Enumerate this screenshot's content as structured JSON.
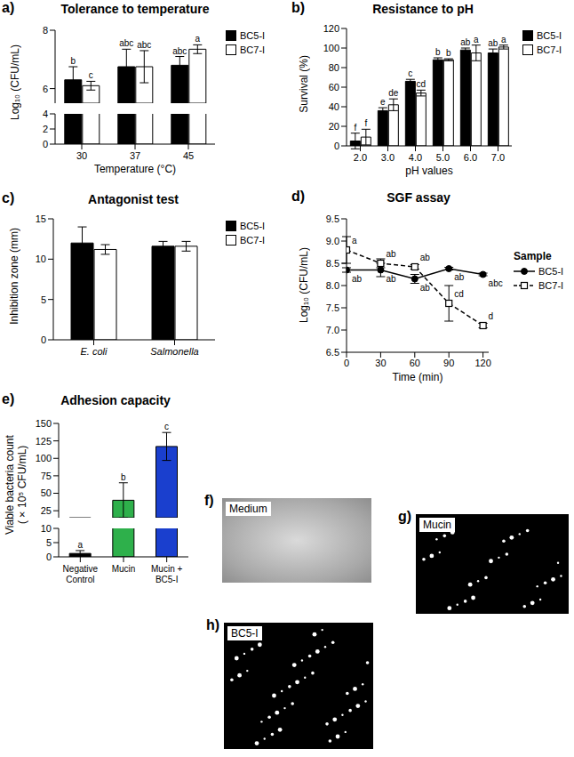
{
  "chart_data": [
    {
      "panel": "a)",
      "type": "bar",
      "title": "Tolerance to temperature",
      "x_label": "Temperature (°C)",
      "y_label": "Log₁₀ (CFU/mL)",
      "categories": [
        "30",
        "37",
        "45"
      ],
      "series": [
        {
          "name": "BC5-I",
          "color": "#000000",
          "values": [
            6.3,
            6.75,
            6.8
          ],
          "errors": [
            0.45,
            0.6,
            0.3
          ],
          "significance": [
            "b",
            "abc",
            "abc"
          ]
        },
        {
          "name": "BC7-I",
          "color": "#ffffff",
          "values": [
            6.1,
            6.75,
            7.35
          ],
          "errors": [
            0.15,
            0.55,
            0.15
          ],
          "significance": [
            "c",
            "abc",
            "a"
          ]
        }
      ],
      "ylim": [
        0,
        8
      ],
      "yticks": [
        0,
        2,
        4,
        6,
        8
      ],
      "axis_break": [
        4,
        5.5
      ],
      "legend": "upper right"
    },
    {
      "panel": "b)",
      "type": "bar",
      "title": "Resistance to pH",
      "x_label": "pH values",
      "y_label": "Survival (%)",
      "categories": [
        "2.0",
        "3.0",
        "4.0",
        "5.0",
        "6.0",
        "7.0"
      ],
      "series": [
        {
          "name": "BC5-I",
          "color": "#000000",
          "values": [
            5,
            36,
            66,
            88,
            98,
            95
          ],
          "errors": [
            8,
            3,
            2,
            2,
            2,
            4
          ],
          "significance": [
            "f",
            "e",
            "c",
            "b",
            "ab",
            "ab"
          ]
        },
        {
          "name": "BC7-I",
          "color": "#ffffff",
          "values": [
            9,
            42,
            54,
            88,
            95,
            101
          ],
          "errors": [
            8,
            6,
            3,
            1,
            8,
            2
          ],
          "significance": [
            "f",
            "de",
            "cd",
            "b",
            "a",
            "a"
          ]
        }
      ],
      "ylim": [
        0,
        120
      ],
      "yticks": [
        0,
        20,
        40,
        60,
        80,
        100,
        120
      ],
      "legend": "upper right"
    },
    {
      "panel": "c)",
      "type": "bar",
      "title": "Antagonist test",
      "y_label": "Inhibition zone (mm)",
      "categories": [
        "E. coli",
        "Salmonella"
      ],
      "series": [
        {
          "name": "BC5-I",
          "color": "#000000",
          "values": [
            12,
            11.6
          ],
          "errors": [
            2,
            0.6
          ]
        },
        {
          "name": "BC7-I",
          "color": "#ffffff",
          "values": [
            11.2,
            11.6
          ],
          "errors": [
            0.6,
            0.6
          ]
        }
      ],
      "ylim": [
        0,
        15
      ],
      "yticks": [
        0,
        5,
        10,
        15
      ],
      "legend": "upper right"
    },
    {
      "panel": "d)",
      "type": "line",
      "title": "SGF assay",
      "x_label": "Time (min)",
      "y_label": "Log₁₀ (CFU/mL)",
      "x": [
        0,
        30,
        60,
        90,
        120
      ],
      "series": [
        {
          "name": "BC5-I",
          "color": "#000000",
          "marker": "circle",
          "line_style": "solid",
          "values": [
            8.35,
            8.35,
            8.15,
            8.38,
            8.25
          ],
          "errors": [
            0.05,
            0.15,
            0.1,
            0.03,
            0.03
          ],
          "significance": [
            "ab",
            "ab",
            "ab",
            "ab",
            "abc"
          ]
        },
        {
          "name": "BC7-I",
          "color": "#000000",
          "marker": "square",
          "line_style": "dashed",
          "values": [
            8.8,
            8.5,
            8.42,
            7.6,
            7.1
          ],
          "errors": [
            0.3,
            0.1,
            0.05,
            0.4,
            0.05
          ],
          "significance": [
            "a",
            "ab",
            "ab",
            "cd",
            "d"
          ]
        }
      ],
      "xlim": [
        0,
        125
      ],
      "xticks": [
        0,
        30,
        60,
        90,
        120
      ],
      "ylim": [
        6.5,
        9.5
      ],
      "yticks": [
        6.5,
        {
          "value": 7,
          "label": "7.0"
        },
        7.5,
        {
          "value": 8,
          "label": "8.0"
        },
        8.5,
        {
          "value": 9,
          "label": "9.0"
        },
        9.5
      ],
      "legend": "right",
      "legend_title": "Sample"
    },
    {
      "panel": "e)",
      "type": "bar",
      "title": "Adhesion capacity",
      "y_label": "Viable bacteria count (×10⁵ CFU/mL)",
      "categories": [
        "Negative Control",
        "Mucin",
        "Mucin + BC5-I"
      ],
      "values": [
        1.2,
        40,
        117
      ],
      "errors": [
        1,
        25,
        20
      ],
      "significance": [
        "a",
        "b",
        "c"
      ],
      "colors": [
        "#000000",
        "#2eb04b",
        "#1a3fce"
      ],
      "ylim": [
        0,
        150
      ],
      "yticks": [
        0,
        5,
        10,
        25,
        50,
        75,
        100,
        125,
        150
      ],
      "axis_break": [
        10,
        15
      ]
    }
  ],
  "images": [
    {
      "panel": "f)",
      "label": "Medium"
    },
    {
      "panel": "g)",
      "label": "Mucin"
    },
    {
      "panel": "h)",
      "label": "BC5-I"
    }
  ]
}
